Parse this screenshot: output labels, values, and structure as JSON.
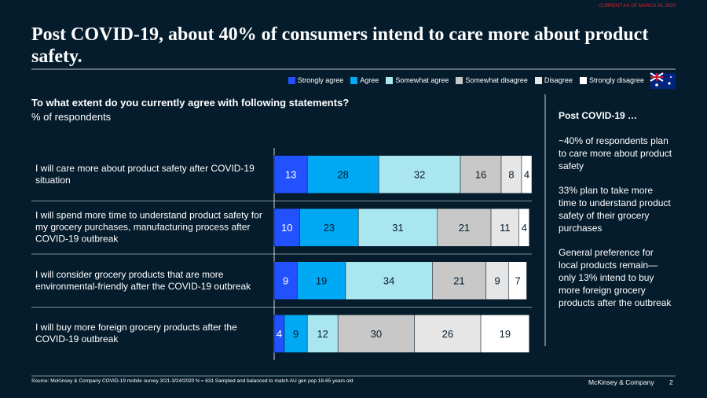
{
  "notice": "CURRENT AS OF MARCH 24, 2020",
  "chart_data": {
    "type": "bar",
    "orientation": "horizontal",
    "stacked": true,
    "title": "Post COVID-19, about 40% of consumers intend to care more about product safety.",
    "subtitle": "To what extent do you currently agree with following statements?",
    "axis_label": "% of respondents",
    "categories": [
      "I will care more about product safety after COVID-19 situation",
      "I will spend more time to understand product safety for my grocery purchases, manufacturing process after COVID-19 outbreak",
      "I will consider grocery products that are more environmental-friendly after the COVID-19 outbreak",
      "I will buy more foreign grocery products after the COVID-19 outbreak"
    ],
    "series": [
      {
        "name": "Strongly agree",
        "color": "#2251ff",
        "values": [
          13,
          10,
          9,
          4
        ]
      },
      {
        "name": "Agree",
        "color": "#00a9f4",
        "values": [
          28,
          23,
          19,
          9
        ]
      },
      {
        "name": "Somewhat agree",
        "color": "#aae6f0",
        "values": [
          32,
          31,
          34,
          12
        ]
      },
      {
        "name": "Somewhat disagree",
        "color": "#c8c8c8",
        "values": [
          16,
          21,
          21,
          30
        ]
      },
      {
        "name": "Disagree",
        "color": "#e6e6e6",
        "values": [
          8,
          11,
          9,
          26
        ]
      },
      {
        "name": "Strongly disagree",
        "color": "#ffffff",
        "values": [
          4,
          4,
          7,
          19
        ]
      }
    ]
  },
  "side_panel": {
    "heading": "Post COVID-19 …",
    "points": [
      "~40% of respondents plan to care more about product safety",
      "33% plan to take more time to understand product safety of their grocery purchases",
      "General preference for local products remain—only 13% intend to buy more foreign grocery products after the outbreak"
    ]
  },
  "footer": {
    "source": "Source: McKinsey & Company COVID-19 mobile survey 3/21-3/24/2020 N = 631 Sampled and balanced to match AU gen pop 18-65 years old",
    "brand": "McKinsey & Company",
    "page": "2"
  }
}
